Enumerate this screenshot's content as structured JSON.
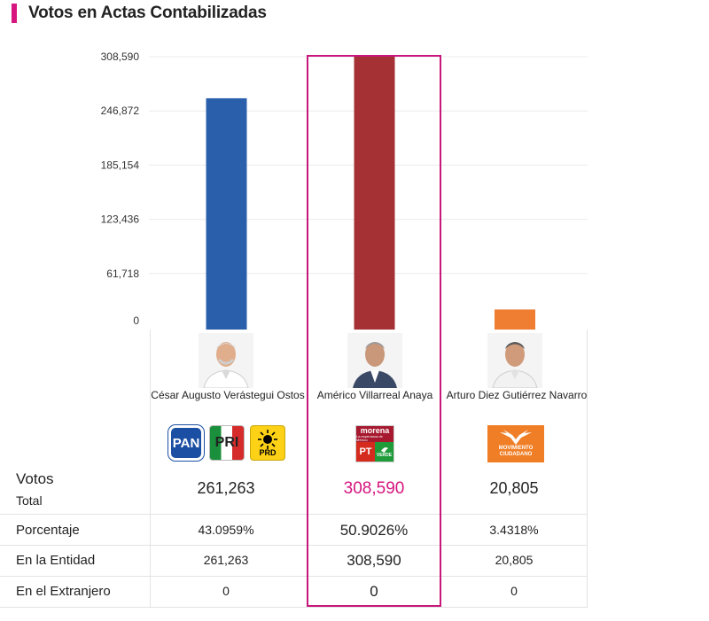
{
  "header": {
    "title": "Votos en Actas Contabilizadas"
  },
  "chart_data": {
    "type": "bar",
    "title": "Votos en Actas Contabilizadas",
    "categories": [
      "César Augusto Verástegui Ostos",
      "Américo Villarreal Anaya",
      "Arturo Diez Gutiérrez Navarro"
    ],
    "values": [
      261263,
      308590,
      20805
    ],
    "colors": [
      "#2a5fac",
      "#a63135",
      "#ef7d32"
    ],
    "yticks": [
      0,
      61718,
      123436,
      185154,
      246872,
      308590
    ],
    "ytick_labels": [
      "0",
      "61,718",
      "123,436",
      "185,154",
      "246,872",
      "308,590"
    ],
    "ylim": [
      0,
      308590
    ],
    "xlabel": "",
    "ylabel": "",
    "grid": true
  },
  "candidates": [
    {
      "name": "César Augusto Verástegui Ostos",
      "parties": [
        "PAN",
        "PRI",
        "PRD"
      ],
      "votos": "261,263",
      "porcentaje": "43.0959%",
      "entidad": "261,263",
      "extranjero": "0"
    },
    {
      "name": "Américo Villarreal Anaya",
      "parties": [
        "morena",
        "PT",
        "VERDE"
      ],
      "votos": "308,590",
      "porcentaje": "50.9026%",
      "entidad": "308,590",
      "extranjero": "0"
    },
    {
      "name": "Arturo Diez Gutiérrez Navarro",
      "parties": [
        "MOVIMIENTO CIUDADANO"
      ],
      "votos": "20,805",
      "porcentaje": "3.4318%",
      "entidad": "20,805",
      "extranjero": "0"
    }
  ],
  "logo_text": {
    "morena_sub": "La esperanza de México",
    "mc_line1": "MOVIMIENTO",
    "mc_line2": "CIUDADANO"
  },
  "rows": {
    "votos": "Votos",
    "total": "Total",
    "porcentaje": "Porcentaje",
    "entidad": "En la Entidad",
    "extranjero": "En el Extranjero"
  },
  "colors": {
    "accent": "#d6157e",
    "winner_text": "#d6157e"
  }
}
